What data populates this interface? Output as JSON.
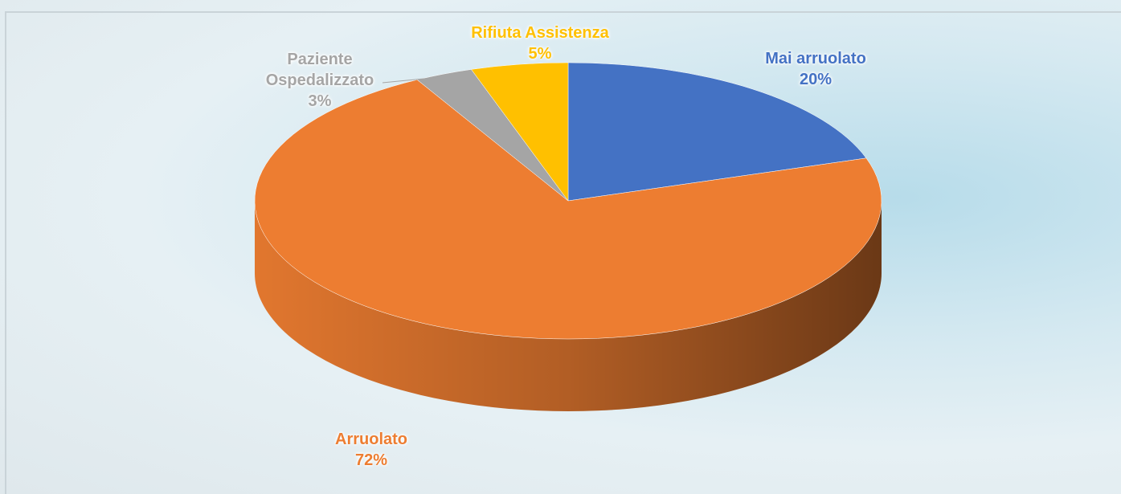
{
  "chart_data": {
    "type": "pie",
    "categories": [
      "Mai arruolato",
      "Arruolato",
      "Paziente Ospedalizzato",
      "Rifiuta Assistenza"
    ],
    "values": [
      20,
      72,
      3,
      5
    ],
    "value_labels": [
      "20%",
      "72%",
      "3%",
      "5%"
    ],
    "colors": [
      "#4472c4",
      "#ed7d31",
      "#a5a5a5",
      "#ffc000"
    ],
    "three_d": true
  }
}
